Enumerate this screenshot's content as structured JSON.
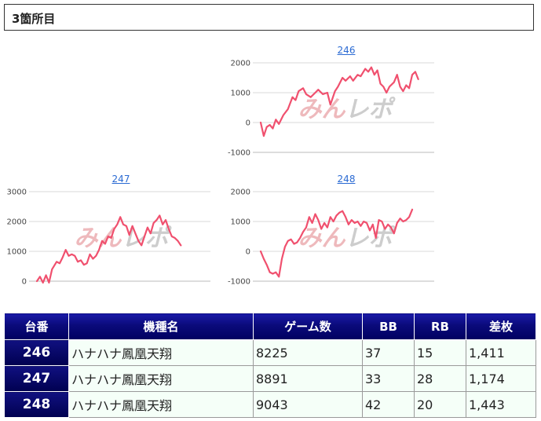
{
  "section": {
    "title": "3箇所目"
  },
  "watermark": "みんレポ",
  "colors": {
    "line": "#f0506e",
    "grid": "#d8d8d8",
    "axis": "#bbbbbb",
    "watermark": "#e9a2a6",
    "watermark_dark": "#b8b8b8"
  },
  "chart_data": [
    {
      "type": "line",
      "title": "246",
      "ylim": [
        -1000,
        2000
      ],
      "yticks": [
        -1000,
        0,
        1000,
        2000
      ],
      "xlim": [
        0,
        100
      ],
      "grid": true,
      "series": [
        {
          "values": [
            [
              0,
              0
            ],
            [
              2,
              -450
            ],
            [
              4,
              -150
            ],
            [
              6,
              -80
            ],
            [
              8,
              -200
            ],
            [
              10,
              100
            ],
            [
              12,
              -50
            ],
            [
              15,
              250
            ],
            [
              18,
              450
            ],
            [
              21,
              850
            ],
            [
              23,
              750
            ],
            [
              25,
              1050
            ],
            [
              28,
              1150
            ],
            [
              30,
              950
            ],
            [
              33,
              850
            ],
            [
              36,
              1000
            ],
            [
              38,
              1100
            ],
            [
              41,
              950
            ],
            [
              44,
              1000
            ],
            [
              46,
              600
            ],
            [
              49,
              1050
            ],
            [
              51,
              1200
            ],
            [
              54,
              1500
            ],
            [
              56,
              1400
            ],
            [
              59,
              1550
            ],
            [
              61,
              1400
            ],
            [
              64,
              1600
            ],
            [
              66,
              1550
            ],
            [
              69,
              1800
            ],
            [
              71,
              1700
            ],
            [
              73,
              1850
            ],
            [
              75,
              1600
            ],
            [
              77,
              1750
            ],
            [
              79,
              1300
            ],
            [
              81,
              1200
            ],
            [
              83,
              1000
            ],
            [
              85,
              1200
            ],
            [
              88,
              1350
            ],
            [
              90,
              1600
            ],
            [
              92,
              1200
            ],
            [
              94,
              1050
            ],
            [
              96,
              1250
            ],
            [
              98,
              1150
            ],
            [
              100,
              1600
            ],
            [
              102,
              1700
            ],
            [
              104,
              1450
            ]
          ]
        }
      ]
    },
    {
      "type": "line",
      "title": "247",
      "ylim": [
        0,
        3000
      ],
      "yticks": [
        0,
        1000,
        2000,
        3000
      ],
      "xlim": [
        0,
        100
      ],
      "grid": true,
      "series": [
        {
          "values": [
            [
              0,
              0
            ],
            [
              2,
              150
            ],
            [
              4,
              -50
            ],
            [
              6,
              200
            ],
            [
              8,
              -50
            ],
            [
              10,
              400
            ],
            [
              13,
              650
            ],
            [
              15,
              600
            ],
            [
              17,
              800
            ],
            [
              19,
              1050
            ],
            [
              21,
              850
            ],
            [
              23,
              900
            ],
            [
              25,
              850
            ],
            [
              27,
              650
            ],
            [
              29,
              700
            ],
            [
              31,
              550
            ],
            [
              33,
              600
            ],
            [
              35,
              900
            ],
            [
              37,
              750
            ],
            [
              39,
              850
            ],
            [
              41,
              1050
            ],
            [
              43,
              1350
            ],
            [
              45,
              1250
            ],
            [
              47,
              1500
            ],
            [
              49,
              1450
            ],
            [
              51,
              1750
            ],
            [
              53,
              1900
            ],
            [
              55,
              2150
            ],
            [
              57,
              1900
            ],
            [
              59,
              1850
            ],
            [
              61,
              1550
            ],
            [
              63,
              1850
            ],
            [
              65,
              1600
            ],
            [
              67,
              1350
            ],
            [
              69,
              1200
            ],
            [
              71,
              1500
            ],
            [
              73,
              1800
            ],
            [
              75,
              1600
            ],
            [
              77,
              1950
            ],
            [
              79,
              2050
            ],
            [
              81,
              2200
            ],
            [
              83,
              1900
            ],
            [
              85,
              2050
            ],
            [
              87,
              1750
            ],
            [
              89,
              1500
            ],
            [
              91,
              1450
            ],
            [
              93,
              1350
            ],
            [
              95,
              1200
            ]
          ]
        }
      ]
    },
    {
      "type": "line",
      "title": "248",
      "ylim": [
        -1000,
        2000
      ],
      "yticks": [
        -1000,
        0,
        1000,
        2000
      ],
      "xlim": [
        0,
        100
      ],
      "grid": true,
      "series": [
        {
          "values": [
            [
              0,
              0
            ],
            [
              2,
              -250
            ],
            [
              4,
              -450
            ],
            [
              6,
              -700
            ],
            [
              8,
              -750
            ],
            [
              10,
              -700
            ],
            [
              12,
              -850
            ],
            [
              14,
              -250
            ],
            [
              16,
              150
            ],
            [
              18,
              350
            ],
            [
              20,
              400
            ],
            [
              22,
              250
            ],
            [
              24,
              300
            ],
            [
              26,
              450
            ],
            [
              28,
              650
            ],
            [
              30,
              800
            ],
            [
              32,
              1150
            ],
            [
              34,
              950
            ],
            [
              36,
              1250
            ],
            [
              38,
              1050
            ],
            [
              40,
              750
            ],
            [
              42,
              950
            ],
            [
              44,
              800
            ],
            [
              46,
              1150
            ],
            [
              48,
              1000
            ],
            [
              50,
              1200
            ],
            [
              52,
              1300
            ],
            [
              54,
              1350
            ],
            [
              56,
              1150
            ],
            [
              58,
              900
            ],
            [
              60,
              1050
            ],
            [
              62,
              950
            ],
            [
              64,
              1000
            ],
            [
              66,
              850
            ],
            [
              68,
              1000
            ],
            [
              70,
              950
            ],
            [
              72,
              700
            ],
            [
              74,
              900
            ],
            [
              76,
              450
            ],
            [
              78,
              1050
            ],
            [
              80,
              1000
            ],
            [
              82,
              750
            ],
            [
              84,
              900
            ],
            [
              86,
              800
            ],
            [
              88,
              600
            ],
            [
              90,
              950
            ],
            [
              92,
              1100
            ],
            [
              94,
              1000
            ],
            [
              96,
              1050
            ],
            [
              98,
              1150
            ],
            [
              100,
              1400
            ]
          ]
        }
      ]
    }
  ],
  "table": {
    "headers": [
      "台番",
      "機種名",
      "ゲーム数",
      "BB",
      "RB",
      "差枚"
    ],
    "rows": [
      [
        "246",
        "ハナハナ鳳凰天翔",
        "8225",
        "37",
        "15",
        "1,411"
      ],
      [
        "247",
        "ハナハナ鳳凰天翔",
        "8891",
        "33",
        "28",
        "1,174"
      ],
      [
        "248",
        "ハナハナ鳳凰天翔",
        "9043",
        "42",
        "20",
        "1,443"
      ]
    ]
  }
}
